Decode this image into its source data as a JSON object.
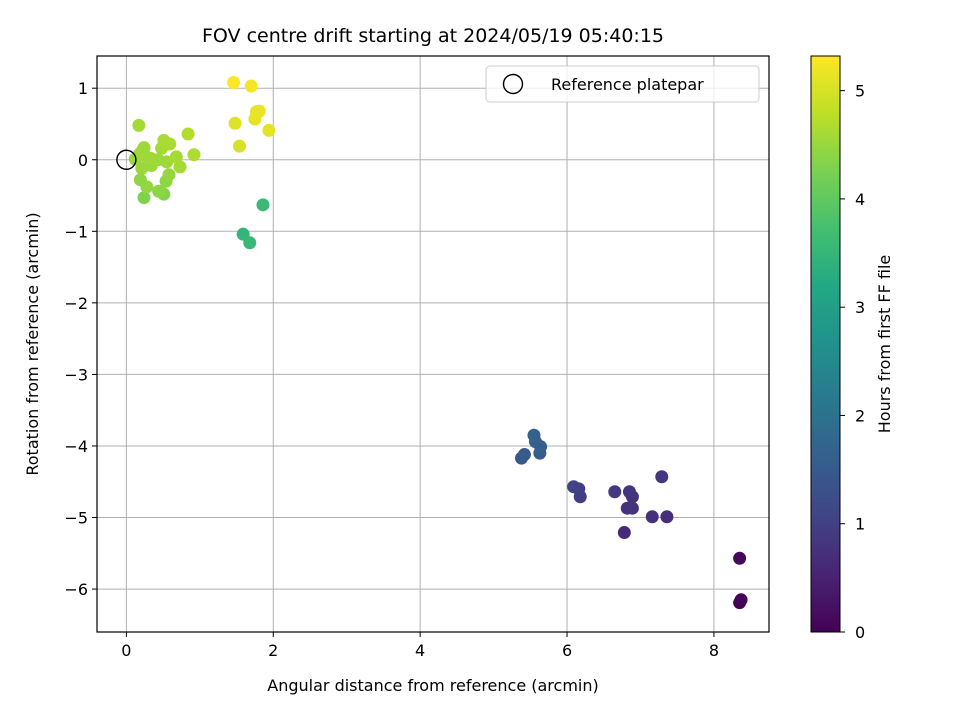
{
  "chart_data": {
    "type": "scatter",
    "title": "FOV centre drift starting at 2024/05/19 05:40:15",
    "xlabel": "Angular distance from reference (arcmin)",
    "ylabel": "Rotation from reference (arcmin)",
    "xlim": [
      -0.4,
      8.75
    ],
    "ylim": [
      -6.6,
      1.45
    ],
    "xticks": [
      0,
      2,
      4,
      6,
      8
    ],
    "yticks": [
      1,
      0,
      -1,
      -2,
      -3,
      -4,
      -5,
      -6
    ],
    "xtick_labels": [
      "0",
      "2",
      "4",
      "6",
      "8"
    ],
    "ytick_labels": [
      "1",
      "0",
      "−1",
      "−2",
      "−3",
      "−4",
      "−5",
      "−6"
    ],
    "grid": true,
    "legend": {
      "placement": "top-right",
      "entries": [
        "Reference platepar"
      ]
    },
    "reference_point": {
      "x": 0,
      "y": 0,
      "label": "Reference platepar",
      "marker": "open-circle"
    },
    "colorbar": {
      "label": "Hours from first FF file",
      "colormap": "viridis",
      "range": [
        0,
        5.32
      ],
      "ticks": [
        0,
        1,
        2,
        3,
        4,
        5
      ],
      "tick_labels": [
        "0",
        "1",
        "2",
        "3",
        "4",
        "5"
      ]
    },
    "points": [
      {
        "x": 8.35,
        "y": -6.19,
        "c": 0.02
      },
      {
        "x": 8.37,
        "y": -6.15,
        "c": 0.05
      },
      {
        "x": 8.35,
        "y": -5.57,
        "c": 0.1
      },
      {
        "x": 6.78,
        "y": -5.21,
        "c": 0.65
      },
      {
        "x": 7.36,
        "y": -4.99,
        "c": 0.7
      },
      {
        "x": 7.16,
        "y": -4.99,
        "c": 0.72
      },
      {
        "x": 6.82,
        "y": -4.87,
        "c": 0.75
      },
      {
        "x": 6.89,
        "y": -4.87,
        "c": 0.78
      },
      {
        "x": 6.89,
        "y": -4.71,
        "c": 0.8
      },
      {
        "x": 6.85,
        "y": -4.64,
        "c": 0.82
      },
      {
        "x": 7.29,
        "y": -4.43,
        "c": 0.85
      },
      {
        "x": 6.65,
        "y": -4.64,
        "c": 0.88
      },
      {
        "x": 6.18,
        "y": -4.71,
        "c": 0.95
      },
      {
        "x": 6.16,
        "y": -4.6,
        "c": 1.0
      },
      {
        "x": 6.09,
        "y": -4.57,
        "c": 1.05
      },
      {
        "x": 5.38,
        "y": -4.17,
        "c": 1.45
      },
      {
        "x": 5.42,
        "y": -4.12,
        "c": 1.5
      },
      {
        "x": 5.63,
        "y": -4.1,
        "c": 1.55
      },
      {
        "x": 5.64,
        "y": -4.01,
        "c": 1.6
      },
      {
        "x": 5.57,
        "y": -3.94,
        "c": 1.62
      },
      {
        "x": 5.55,
        "y": -3.85,
        "c": 1.65
      },
      {
        "x": 1.59,
        "y": -1.04,
        "c": 3.5
      },
      {
        "x": 1.68,
        "y": -1.16,
        "c": 3.55
      },
      {
        "x": 1.86,
        "y": -0.63,
        "c": 3.6
      },
      {
        "x": 0.24,
        "y": -0.53,
        "c": 4.3
      },
      {
        "x": 0.51,
        "y": -0.48,
        "c": 4.35
      },
      {
        "x": 0.44,
        "y": -0.44,
        "c": 4.4
      },
      {
        "x": 0.28,
        "y": -0.38,
        "c": 4.45
      },
      {
        "x": 0.54,
        "y": -0.3,
        "c": 4.4
      },
      {
        "x": 0.19,
        "y": -0.28,
        "c": 4.42
      },
      {
        "x": 0.58,
        "y": -0.21,
        "c": 4.48
      },
      {
        "x": 0.21,
        "y": -0.12,
        "c": 4.5
      },
      {
        "x": 0.34,
        "y": -0.08,
        "c": 4.52
      },
      {
        "x": 0.73,
        "y": -0.1,
        "c": 4.6
      },
      {
        "x": 0.55,
        "y": -0.03,
        "c": 4.55
      },
      {
        "x": 0.43,
        "y": 0.0,
        "c": 4.55
      },
      {
        "x": 0.12,
        "y": 0.01,
        "c": 4.5
      },
      {
        "x": 0.33,
        "y": 0.02,
        "c": 4.55
      },
      {
        "x": 0.68,
        "y": 0.04,
        "c": 4.6
      },
      {
        "x": 0.26,
        "y": 0.05,
        "c": 4.55
      },
      {
        "x": 0.18,
        "y": 0.08,
        "c": 4.55
      },
      {
        "x": 0.92,
        "y": 0.07,
        "c": 4.65
      },
      {
        "x": 0.22,
        "y": 0.13,
        "c": 4.55
      },
      {
        "x": 0.48,
        "y": 0.16,
        "c": 4.6
      },
      {
        "x": 0.24,
        "y": 0.17,
        "c": 4.55
      },
      {
        "x": 0.59,
        "y": 0.22,
        "c": 4.62
      },
      {
        "x": 0.51,
        "y": 0.27,
        "c": 4.62
      },
      {
        "x": 0.84,
        "y": 0.36,
        "c": 4.7
      },
      {
        "x": 0.17,
        "y": 0.48,
        "c": 4.6
      },
      {
        "x": 1.54,
        "y": 0.19,
        "c": 5.0
      },
      {
        "x": 1.94,
        "y": 0.41,
        "c": 5.1
      },
      {
        "x": 1.48,
        "y": 0.51,
        "c": 5.05
      },
      {
        "x": 1.75,
        "y": 0.57,
        "c": 5.1
      },
      {
        "x": 1.77,
        "y": 0.67,
        "c": 5.12
      },
      {
        "x": 1.81,
        "y": 0.68,
        "c": 5.15
      },
      {
        "x": 1.7,
        "y": 1.03,
        "c": 5.25
      },
      {
        "x": 1.46,
        "y": 1.08,
        "c": 5.3
      }
    ]
  }
}
